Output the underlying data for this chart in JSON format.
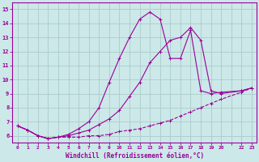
{
  "title": "",
  "xlabel": "Windchill (Refroidissement éolien,°C)",
  "ylabel": "",
  "bg_color": "#cce8e8",
  "grid_color": "#aacccc",
  "line_color": "#990099",
  "xlim": [
    -0.5,
    23.5
  ],
  "ylim": [
    5.5,
    15.5
  ],
  "yticks": [
    6,
    7,
    8,
    9,
    10,
    11,
    12,
    13,
    14,
    15
  ],
  "xtick_labels": [
    "0",
    "1",
    "2",
    "3",
    "4",
    "5",
    "6",
    "7",
    "8",
    "9",
    "10",
    "11",
    "12",
    "13",
    "14",
    "15",
    "16",
    "17",
    "18",
    "19",
    "20",
    "",
    "22",
    "23"
  ],
  "xtick_positions": [
    0,
    1,
    2,
    3,
    4,
    5,
    6,
    7,
    8,
    9,
    10,
    11,
    12,
    13,
    14,
    15,
    16,
    17,
    18,
    19,
    20,
    21,
    22,
    23
  ],
  "series": [
    {
      "x": [
        0,
        1,
        2,
        3,
        4,
        5,
        6,
        7,
        8,
        9,
        10,
        11,
        12,
        13,
        14,
        15,
        16,
        17,
        18,
        19,
        20,
        22,
        23
      ],
      "y": [
        6.7,
        6.4,
        6.0,
        5.8,
        5.9,
        5.9,
        5.9,
        6.0,
        6.0,
        6.1,
        6.3,
        6.4,
        6.5,
        6.7,
        6.9,
        7.1,
        7.4,
        7.7,
        8.0,
        8.3,
        8.6,
        9.1,
        9.4
      ],
      "style": "--",
      "marker": "+"
    },
    {
      "x": [
        0,
        1,
        2,
        3,
        4,
        5,
        6,
        7,
        8,
        9,
        10,
        11,
        12,
        13,
        14,
        15,
        16,
        17,
        18,
        19,
        20,
        22,
        23
      ],
      "y": [
        6.7,
        6.4,
        6.0,
        5.8,
        5.9,
        6.0,
        6.2,
        6.4,
        6.8,
        7.2,
        7.8,
        8.8,
        9.8,
        11.2,
        12.0,
        12.8,
        13.0,
        13.7,
        12.8,
        9.2,
        9.0,
        9.2,
        9.4
      ],
      "style": "-",
      "marker": "+"
    },
    {
      "x": [
        0,
        1,
        2,
        3,
        4,
        5,
        6,
        7,
        8,
        9,
        10,
        11,
        12,
        13,
        14,
        15,
        16,
        17,
        18,
        19,
        20,
        22,
        23
      ],
      "y": [
        6.7,
        6.4,
        6.0,
        5.8,
        5.9,
        6.1,
        6.5,
        7.0,
        8.0,
        9.8,
        11.5,
        13.0,
        14.3,
        14.8,
        14.3,
        11.5,
        11.5,
        13.5,
        9.2,
        9.0,
        9.1,
        9.2,
        9.4
      ],
      "style": "-",
      "marker": "+"
    }
  ]
}
